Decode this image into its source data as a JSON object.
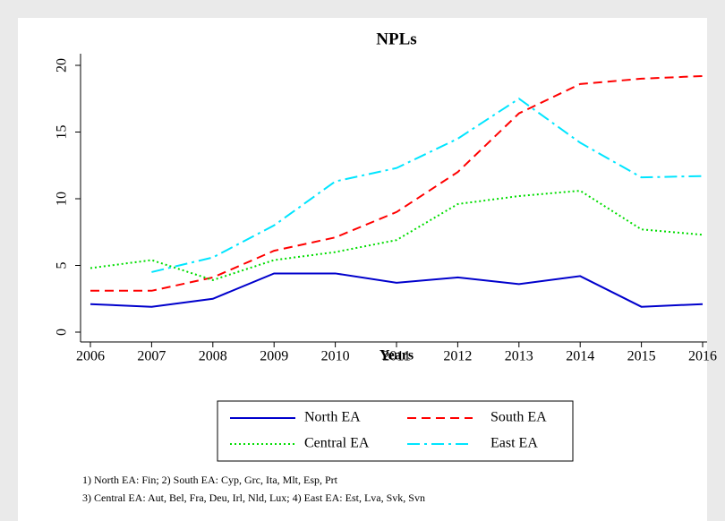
{
  "chart_data": {
    "type": "line",
    "title": "NPLs",
    "xlabel": "Years",
    "x": [
      2006,
      2007,
      2008,
      2009,
      2010,
      2011,
      2012,
      2013,
      2014,
      2015,
      2016
    ],
    "series": [
      {
        "name": "North EA",
        "color": "#0000cc",
        "dash": "solid",
        "values": [
          2.1,
          1.9,
          2.5,
          4.4,
          4.4,
          3.7,
          4.1,
          3.6,
          4.2,
          1.9,
          2.1
        ]
      },
      {
        "name": "South EA",
        "color": "#ff0000",
        "dash": "dashed",
        "values": [
          3.1,
          3.1,
          4.1,
          6.1,
          7.1,
          9.0,
          12.0,
          16.4,
          18.6,
          19.0,
          19.2
        ]
      },
      {
        "name": "Central EA",
        "color": "#00dd00",
        "dash": "dotted",
        "values": [
          4.8,
          5.4,
          3.9,
          5.4,
          6.0,
          6.9,
          9.6,
          10.2,
          10.6,
          7.7,
          7.3
        ]
      },
      {
        "name": "East EA",
        "color": "#00e5ff",
        "dash": "dashdot",
        "values": [
          null,
          4.5,
          5.6,
          8.0,
          11.3,
          12.3,
          14.5,
          17.5,
          14.2,
          11.6,
          11.7
        ]
      }
    ],
    "xlim": [
      2006,
      2016
    ],
    "xticks": [
      2006,
      2007,
      2008,
      2009,
      2010,
      2011,
      2012,
      2013,
      2014,
      2015,
      2016
    ],
    "ylim": [
      0,
      20
    ],
    "yticks": [
      0,
      5,
      10,
      15,
      20
    ],
    "grid": false,
    "notes": [
      "1) North EA: Fin; 2) South EA: Cyp, Grc, Ita, Mlt, Esp, Prt",
      "3) Central EA: Aut, Bel, Fra, Deu, Irl, Nld, Lux; 4) East EA: Est, Lva, Svk, Svn"
    ]
  }
}
